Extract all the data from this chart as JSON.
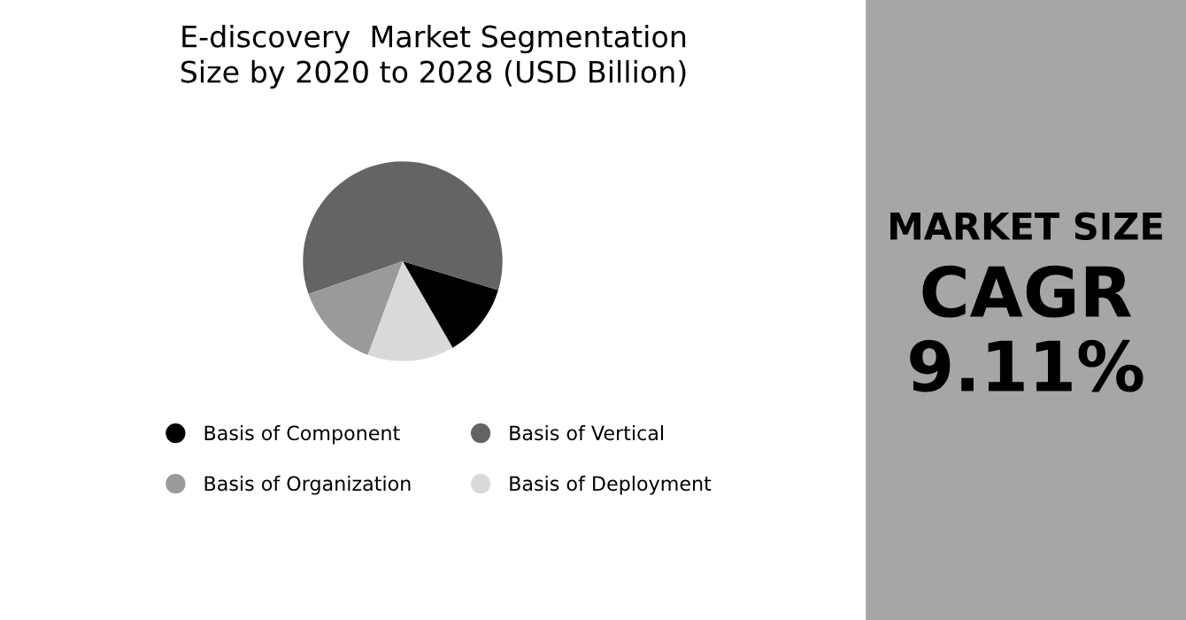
{
  "chart_data": [
    {
      "type": "pie",
      "title": "E-discovery  Market Segmentation\nSize by 2020 to 2028 (USD Billion)",
      "categories": [
        "Basis of Component",
        "Basis of Vertical",
        "Basis of Organization",
        "Basis of Deployment"
      ],
      "values": [
        12,
        60,
        14,
        14
      ],
      "colors": [
        "#000000",
        "#646464",
        "#9a9a9a",
        "#d9d9d9"
      ],
      "legend": "bottom"
    },
    {
      "type": "other",
      "title": "MARKET SIZE",
      "annotations": [
        "CAGR",
        "9.11%"
      ]
    }
  ]
}
